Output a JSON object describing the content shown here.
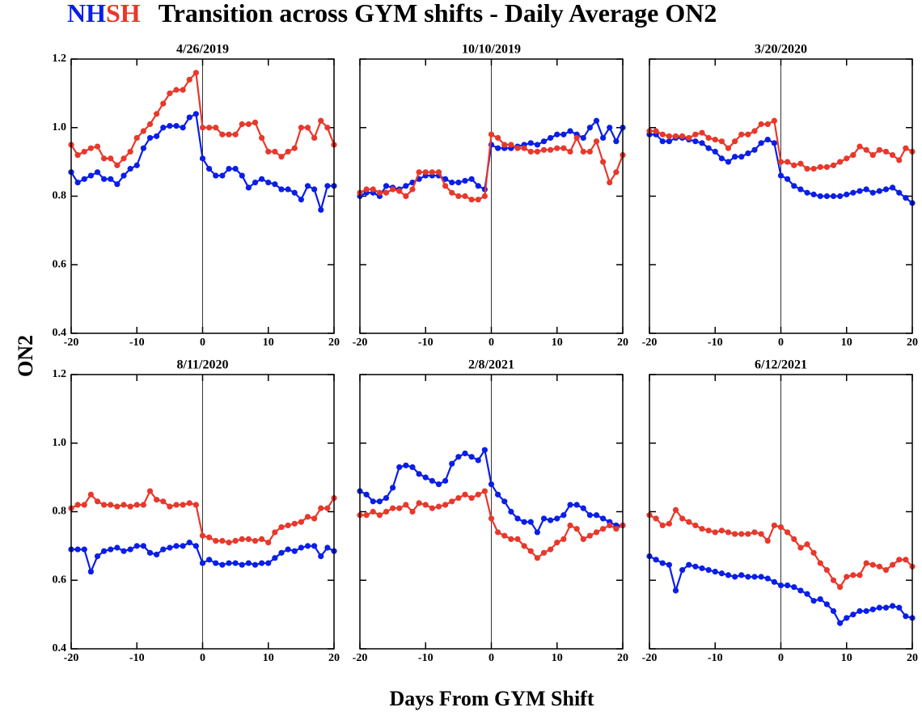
{
  "title": "Transition across GYM shifts - Daily Average ON2",
  "xlabel": "Days From GYM Shift",
  "ylabel": "ON2",
  "chart_data": [
    {
      "type": "line",
      "title": "4/26/2019",
      "x": [
        -20,
        -19,
        -18,
        -17,
        -16,
        -15,
        -14,
        -13,
        -12,
        -11,
        -10,
        -9,
        -8,
        -7,
        -6,
        -5,
        -4,
        -3,
        -2,
        -1,
        0,
        1,
        2,
        3,
        4,
        5,
        6,
        7,
        8,
        9,
        10,
        11,
        12,
        13,
        14,
        15,
        16,
        17,
        18,
        19,
        20
      ],
      "series": [
        {
          "name": "NH",
          "color": "#0a1ee8",
          "values": [
            0.87,
            0.84,
            0.85,
            0.86,
            0.87,
            0.85,
            0.85,
            0.835,
            0.86,
            0.88,
            0.89,
            0.94,
            0.97,
            0.975,
            1.0,
            1.005,
            1.005,
            1.0,
            1.03,
            1.04,
            0.91,
            0.88,
            0.86,
            0.86,
            0.88,
            0.88,
            0.86,
            0.825,
            0.84,
            0.85,
            0.84,
            0.835,
            0.82,
            0.82,
            0.81,
            0.79,
            0.83,
            0.82,
            0.76,
            0.83,
            0.83
          ]
        },
        {
          "name": "SH",
          "color": "#e8382b",
          "values": [
            0.95,
            0.92,
            0.93,
            0.94,
            0.945,
            0.91,
            0.91,
            0.89,
            0.91,
            0.93,
            0.97,
            0.99,
            1.01,
            1.04,
            1.07,
            1.1,
            1.11,
            1.11,
            1.14,
            1.16,
            1.0,
            1.0,
            1.0,
            0.98,
            0.98,
            0.98,
            1.01,
            1.01,
            1.015,
            0.97,
            0.93,
            0.93,
            0.915,
            0.93,
            0.94,
            1.0,
            1.0,
            0.97,
            1.02,
            1.0,
            0.95
          ]
        }
      ],
      "xlim": [
        -20,
        20
      ],
      "xticks": [
        -20,
        -10,
        0,
        10,
        20
      ],
      "ylim": [
        0.4,
        1.2
      ],
      "yticks": [
        0.4,
        0.6,
        0.8,
        {
          "value": 1,
          "label": "1.0"
        },
        1.2
      ],
      "show_ytick_labels": true,
      "vline": 0
    },
    {
      "type": "line",
      "title": "10/10/2019",
      "x": [
        -20,
        -19,
        -18,
        -17,
        -16,
        -15,
        -14,
        -13,
        -12,
        -11,
        -10,
        -9,
        -8,
        -7,
        -6,
        -5,
        -4,
        -3,
        -2,
        -1,
        0,
        1,
        2,
        3,
        4,
        5,
        6,
        7,
        8,
        9,
        10,
        11,
        12,
        13,
        14,
        15,
        16,
        17,
        18,
        19,
        20
      ],
      "series": [
        {
          "color": "#0a1ee8",
          "values": [
            0.8,
            0.81,
            0.81,
            0.8,
            0.83,
            0.825,
            0.82,
            0.83,
            0.84,
            0.85,
            0.86,
            0.86,
            0.86,
            0.85,
            0.84,
            0.84,
            0.845,
            0.85,
            0.83,
            0.82,
            0.95,
            0.94,
            0.94,
            0.94,
            0.945,
            0.95,
            0.955,
            0.95,
            0.96,
            0.97,
            0.98,
            0.98,
            0.99,
            0.98,
            0.97,
            1.0,
            1.02,
            0.97,
            1.0,
            0.96,
            1.0
          ]
        },
        {
          "color": "#e8382b",
          "values": [
            0.81,
            0.82,
            0.82,
            0.81,
            0.81,
            0.82,
            0.815,
            0.8,
            0.82,
            0.87,
            0.87,
            0.87,
            0.87,
            0.83,
            0.81,
            0.8,
            0.8,
            0.79,
            0.79,
            0.8,
            0.98,
            0.97,
            0.95,
            0.95,
            0.94,
            0.94,
            0.93,
            0.93,
            0.935,
            0.935,
            0.94,
            0.94,
            0.93,
            0.97,
            0.93,
            0.93,
            0.96,
            0.9,
            0.84,
            0.87,
            0.92
          ]
        }
      ],
      "xlim": [
        -20,
        20
      ],
      "xticks": [
        -20,
        -10,
        0,
        10,
        20
      ],
      "ylim": [
        0.4,
        1.2
      ],
      "yticks": [
        0.4,
        0.6,
        0.8,
        1,
        1.2
      ],
      "show_ytick_labels": false,
      "vline": 0
    },
    {
      "type": "line",
      "title": "3/20/2020",
      "x": [
        -20,
        -19,
        -18,
        -17,
        -16,
        -15,
        -14,
        -13,
        -12,
        -11,
        -10,
        -9,
        -8,
        -7,
        -6,
        -5,
        -4,
        -3,
        -2,
        -1,
        0,
        1,
        2,
        3,
        4,
        5,
        6,
        7,
        8,
        9,
        10,
        11,
        12,
        13,
        14,
        15,
        16,
        17,
        18,
        19,
        20
      ],
      "series": [
        {
          "color": "#0a1ee8",
          "values": [
            0.98,
            0.98,
            0.96,
            0.96,
            0.97,
            0.97,
            0.965,
            0.96,
            0.955,
            0.94,
            0.93,
            0.91,
            0.9,
            0.915,
            0.915,
            0.925,
            0.935,
            0.955,
            0.965,
            0.955,
            0.86,
            0.85,
            0.83,
            0.82,
            0.81,
            0.805,
            0.8,
            0.8,
            0.8,
            0.8,
            0.805,
            0.81,
            0.815,
            0.82,
            0.81,
            0.815,
            0.82,
            0.825,
            0.81,
            0.795,
            0.78
          ]
        },
        {
          "color": "#e8382b",
          "values": [
            0.99,
            0.99,
            0.98,
            0.975,
            0.975,
            0.975,
            0.97,
            0.98,
            0.985,
            0.97,
            0.965,
            0.96,
            0.94,
            0.96,
            0.98,
            0.98,
            0.99,
            1.01,
            1.01,
            1.02,
            0.9,
            0.9,
            0.89,
            0.895,
            0.88,
            0.88,
            0.885,
            0.885,
            0.89,
            0.9,
            0.91,
            0.92,
            0.945,
            0.935,
            0.92,
            0.935,
            0.93,
            0.92,
            0.905,
            0.94,
            0.93
          ]
        }
      ],
      "xlim": [
        -20,
        20
      ],
      "xticks": [
        -20,
        -10,
        0,
        10,
        20
      ],
      "ylim": [
        0.4,
        1.2
      ],
      "yticks": [
        0.4,
        0.6,
        0.8,
        1,
        1.2
      ],
      "show_ytick_labels": false,
      "vline": 0
    },
    {
      "type": "line",
      "title": "8/11/2020",
      "x": [
        -20,
        -19,
        -18,
        -17,
        -16,
        -15,
        -14,
        -13,
        -12,
        -11,
        -10,
        -9,
        -8,
        -7,
        -6,
        -5,
        -4,
        -3,
        -2,
        -1,
        0,
        1,
        2,
        3,
        4,
        5,
        6,
        7,
        8,
        9,
        10,
        11,
        12,
        13,
        14,
        15,
        16,
        17,
        18,
        19,
        20
      ],
      "series": [
        {
          "color": "#0a1ee8",
          "values": [
            0.69,
            0.69,
            0.69,
            0.625,
            0.67,
            0.685,
            0.69,
            0.695,
            0.685,
            0.69,
            0.7,
            0.7,
            0.68,
            0.675,
            0.69,
            0.695,
            0.7,
            0.7,
            0.71,
            0.7,
            0.65,
            0.66,
            0.65,
            0.645,
            0.65,
            0.65,
            0.645,
            0.65,
            0.645,
            0.65,
            0.65,
            0.665,
            0.68,
            0.69,
            0.685,
            0.695,
            0.7,
            0.7,
            0.67,
            0.695,
            0.685
          ]
        },
        {
          "color": "#e8382b",
          "values": [
            0.81,
            0.82,
            0.82,
            0.85,
            0.83,
            0.82,
            0.82,
            0.815,
            0.82,
            0.815,
            0.82,
            0.82,
            0.86,
            0.835,
            0.83,
            0.815,
            0.82,
            0.82,
            0.825,
            0.82,
            0.73,
            0.725,
            0.715,
            0.715,
            0.71,
            0.715,
            0.72,
            0.72,
            0.715,
            0.72,
            0.71,
            0.74,
            0.755,
            0.76,
            0.765,
            0.77,
            0.785,
            0.78,
            0.81,
            0.81,
            0.84
          ]
        }
      ],
      "xlim": [
        -20,
        20
      ],
      "xticks": [
        -20,
        -10,
        0,
        10,
        20
      ],
      "ylim": [
        0.4,
        1.2
      ],
      "yticks": [
        0.4,
        0.6,
        0.8,
        {
          "value": 1,
          "label": "1.0"
        },
        1.2
      ],
      "show_ytick_labels": true,
      "vline": 0
    },
    {
      "type": "line",
      "title": "2/8/2021",
      "x": [
        -20,
        -19,
        -18,
        -17,
        -16,
        -15,
        -14,
        -13,
        -12,
        -11,
        -10,
        -9,
        -8,
        -7,
        -6,
        -5,
        -4,
        -3,
        -2,
        -1,
        0,
        1,
        2,
        3,
        4,
        5,
        6,
        7,
        8,
        9,
        10,
        11,
        12,
        13,
        14,
        15,
        16,
        17,
        18,
        19,
        20
      ],
      "series": [
        {
          "color": "#0a1ee8",
          "values": [
            0.86,
            0.85,
            0.83,
            0.83,
            0.84,
            0.87,
            0.93,
            0.935,
            0.93,
            0.91,
            0.9,
            0.89,
            0.88,
            0.89,
            0.94,
            0.96,
            0.97,
            0.96,
            0.95,
            0.98,
            0.88,
            0.85,
            0.83,
            0.8,
            0.78,
            0.77,
            0.77,
            0.74,
            0.78,
            0.775,
            0.78,
            0.79,
            0.82,
            0.82,
            0.81,
            0.79,
            0.79,
            0.78,
            0.77,
            0.76,
            0.76
          ]
        },
        {
          "color": "#e8382b",
          "values": [
            0.79,
            0.79,
            0.8,
            0.79,
            0.8,
            0.81,
            0.81,
            0.82,
            0.8,
            0.825,
            0.82,
            0.81,
            0.815,
            0.82,
            0.83,
            0.84,
            0.85,
            0.84,
            0.85,
            0.86,
            0.78,
            0.74,
            0.73,
            0.72,
            0.72,
            0.7,
            0.685,
            0.665,
            0.68,
            0.69,
            0.71,
            0.72,
            0.76,
            0.75,
            0.72,
            0.73,
            0.74,
            0.75,
            0.76,
            0.75,
            0.76
          ]
        }
      ],
      "xlim": [
        -20,
        20
      ],
      "xticks": [
        -20,
        -10,
        0,
        10,
        20
      ],
      "ylim": [
        0.4,
        1.2
      ],
      "yticks": [
        0.4,
        0.6,
        0.8,
        1,
        1.2
      ],
      "show_ytick_labels": false,
      "vline": 0
    },
    {
      "type": "line",
      "title": "6/12/2021",
      "x": [
        -20,
        -19,
        -18,
        -17,
        -16,
        -15,
        -14,
        -13,
        -12,
        -11,
        -10,
        -9,
        -8,
        -7,
        -6,
        -5,
        -4,
        -3,
        -2,
        -1,
        0,
        1,
        2,
        3,
        4,
        5,
        6,
        7,
        8,
        9,
        10,
        11,
        12,
        13,
        14,
        15,
        16,
        17,
        18,
        19,
        20
      ],
      "series": [
        {
          "color": "#0a1ee8",
          "values": [
            0.67,
            0.66,
            0.65,
            0.645,
            0.57,
            0.63,
            0.645,
            0.64,
            0.635,
            0.63,
            0.625,
            0.62,
            0.615,
            0.61,
            0.615,
            0.61,
            0.61,
            0.61,
            0.605,
            0.595,
            0.585,
            0.585,
            0.58,
            0.57,
            0.56,
            0.54,
            0.545,
            0.53,
            0.51,
            0.475,
            0.49,
            0.5,
            0.51,
            0.51,
            0.515,
            0.52,
            0.52,
            0.525,
            0.52,
            0.495,
            0.49
          ]
        },
        {
          "color": "#e8382b",
          "values": [
            0.79,
            0.78,
            0.76,
            0.765,
            0.805,
            0.78,
            0.77,
            0.76,
            0.75,
            0.745,
            0.74,
            0.745,
            0.74,
            0.735,
            0.735,
            0.735,
            0.74,
            0.735,
            0.715,
            0.76,
            0.755,
            0.74,
            0.72,
            0.695,
            0.705,
            0.68,
            0.65,
            0.63,
            0.6,
            0.58,
            0.61,
            0.615,
            0.615,
            0.65,
            0.645,
            0.64,
            0.63,
            0.645,
            0.66,
            0.66,
            0.64
          ]
        }
      ],
      "xlim": [
        -20,
        20
      ],
      "xticks": [
        -20,
        -10,
        0,
        10,
        20
      ],
      "ylim": [
        0.4,
        1.2
      ],
      "yticks": [
        0.4,
        0.6,
        0.8,
        1,
        1.2
      ],
      "show_ytick_labels": false,
      "vline": 0
    }
  ]
}
